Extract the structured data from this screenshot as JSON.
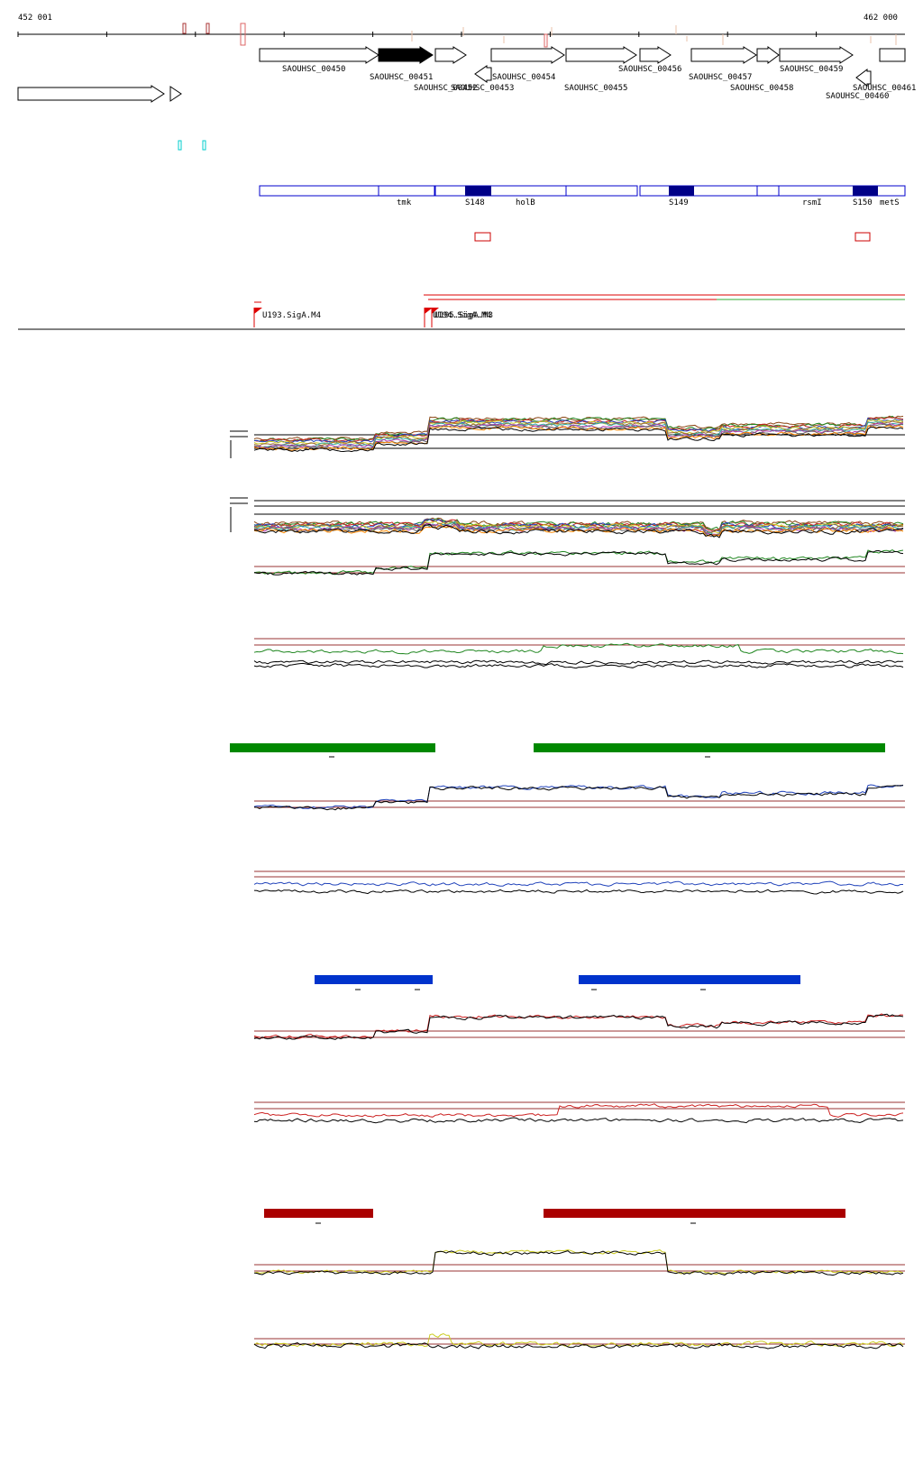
{
  "coordinates": {
    "start_label": "452 001",
    "end_label": "462 000"
  },
  "genes": [
    {
      "id": "SAOUHSC_00450",
      "strand": "+"
    },
    {
      "id": "SAOUHSC_00451",
      "strand": "+",
      "highlighted": true
    },
    {
      "id": "SAOUHSC_00452",
      "strand": "+"
    },
    {
      "id": "SAOUHSC_00453",
      "strand": "-"
    },
    {
      "id": "SAOUHSC_00454",
      "strand": "+"
    },
    {
      "id": "SAOUHSC_00455",
      "strand": "+"
    },
    {
      "id": "SAOUHSC_00456",
      "strand": "+"
    },
    {
      "id": "SAOUHSC_00457",
      "strand": "+"
    },
    {
      "id": "SAOUHSC_00458",
      "strand": "+"
    },
    {
      "id": "SAOUHSC_00459",
      "strand": "+"
    },
    {
      "id": "SAOUHSC_00460",
      "strand": "-"
    },
    {
      "id": "SAOUHSC_00461",
      "strand": "+"
    }
  ],
  "annotation_track": {
    "labels": [
      "tmk",
      "S148",
      "holB",
      "S149",
      "rsmI",
      "S150",
      "metS"
    ],
    "color": "#0000cc"
  },
  "promoters": [
    {
      "label": "U193.SigA.M4"
    },
    {
      "label": "U194.SigA.M4"
    },
    {
      "label": "U195.SigA.M3"
    }
  ],
  "colors": {
    "green_bar": "#008800",
    "blue_bar": "#0033cc",
    "red_bar": "#aa0000",
    "guide_line": "#993333",
    "green_trace": "#228822",
    "blue_trace": "#2244bb",
    "red_trace": "#cc2222",
    "yellow_trace": "#cccc22"
  },
  "expression_panels": [
    {
      "name": "all-conditions",
      "color": "multi"
    },
    {
      "name": "green-condition",
      "color": "#228822"
    },
    {
      "name": "blue-condition",
      "color": "#2244bb"
    },
    {
      "name": "red-condition",
      "color": "#cc2222"
    },
    {
      "name": "yellow-condition",
      "color": "#cccc22"
    }
  ]
}
